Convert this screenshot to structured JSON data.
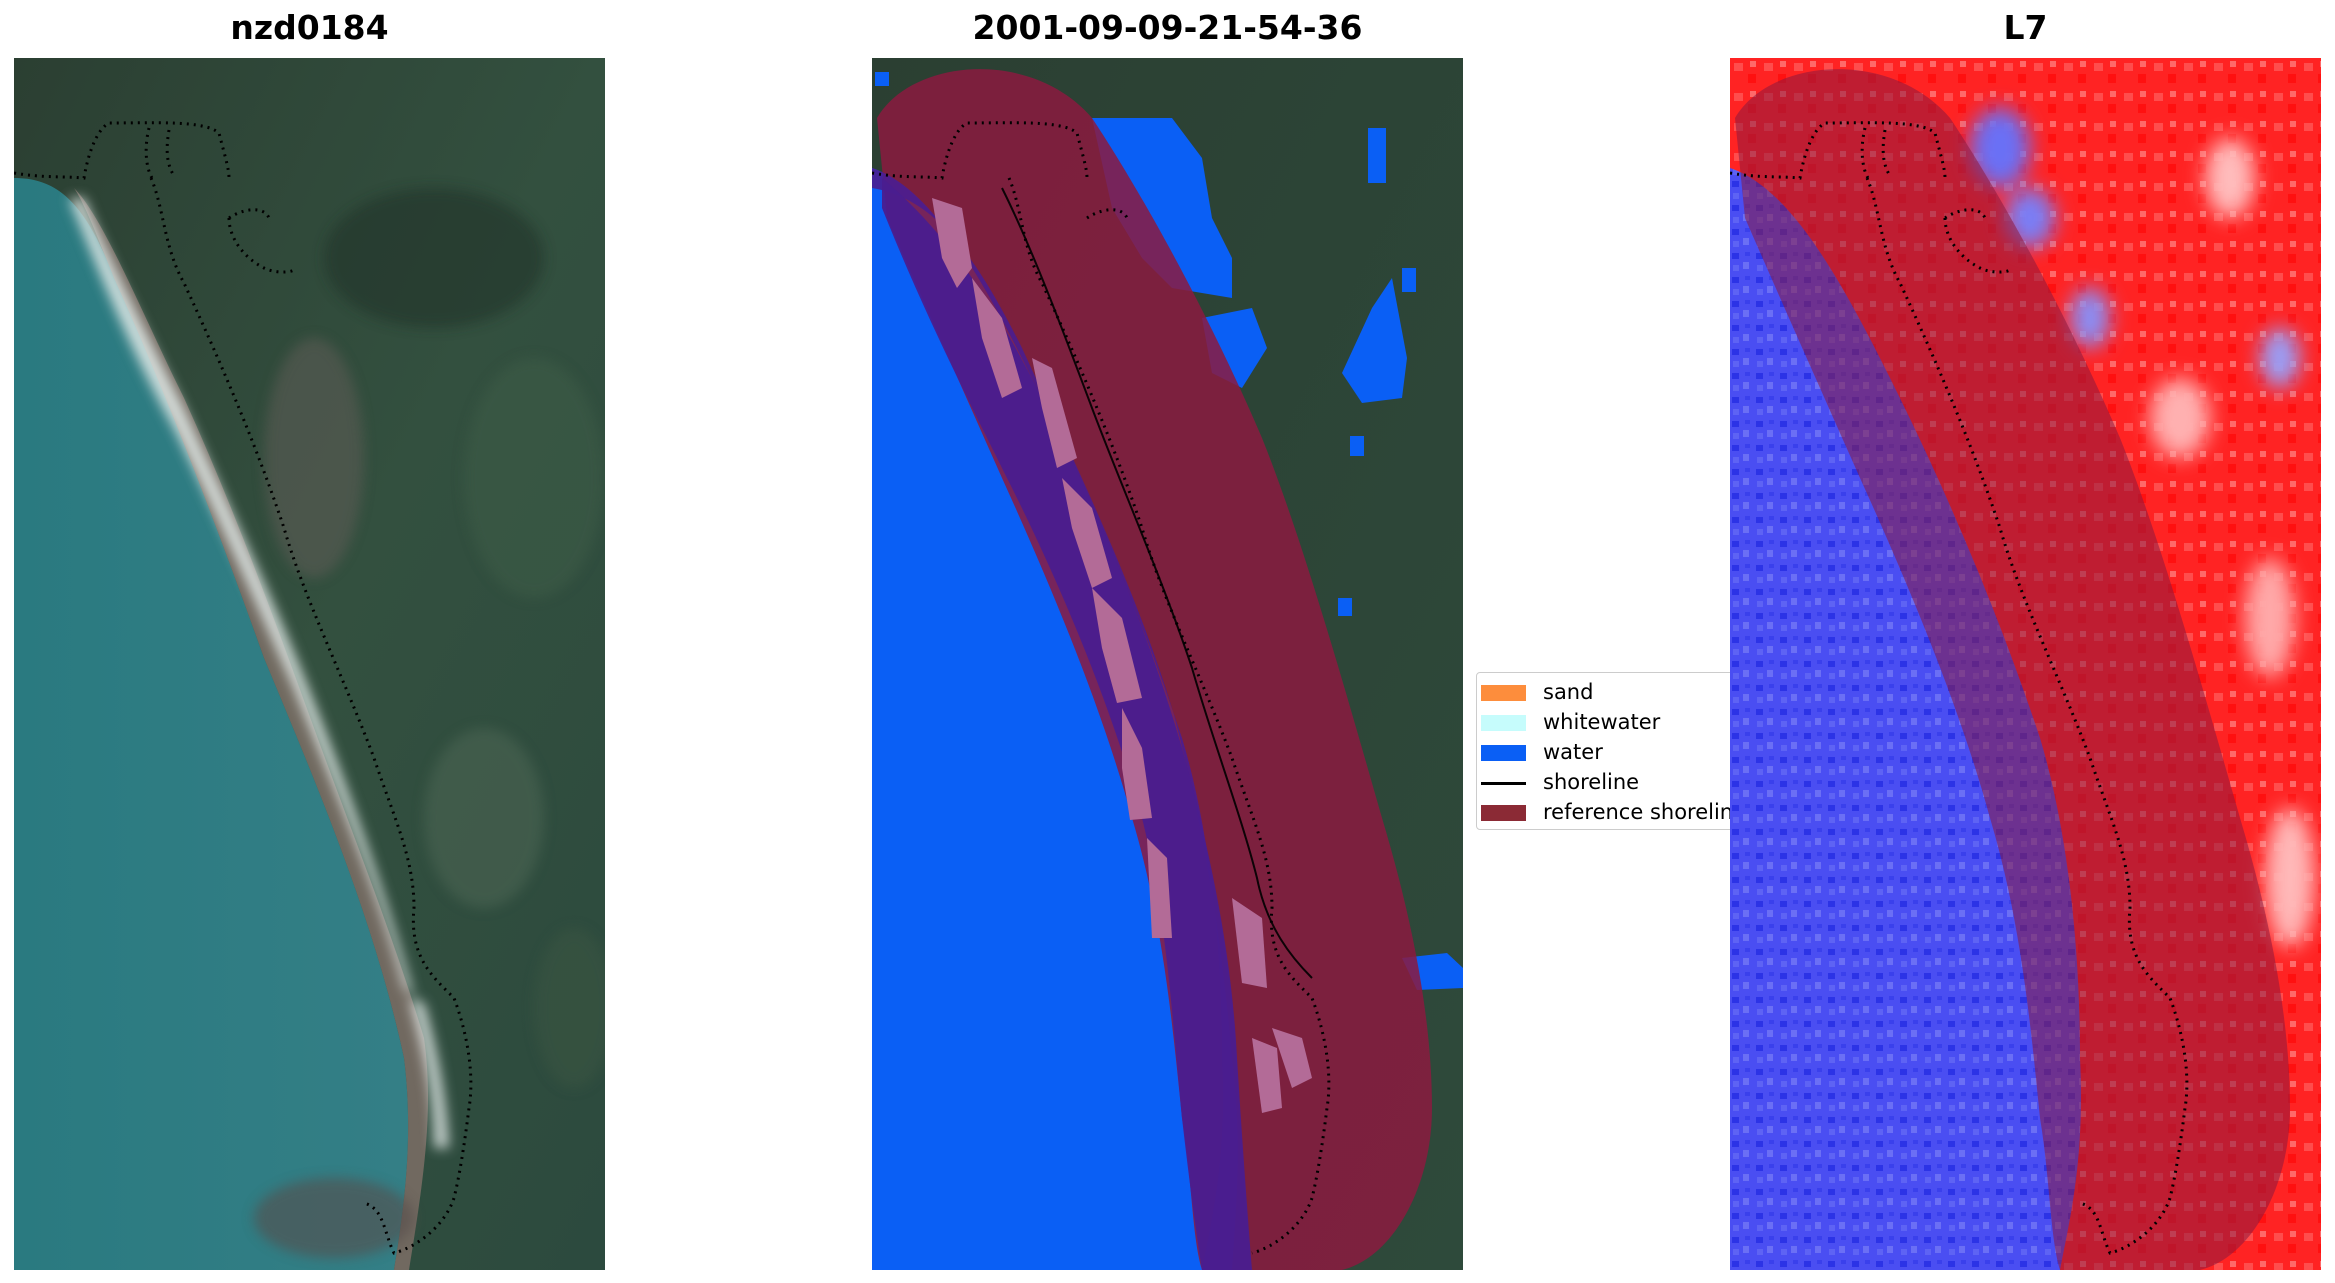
{
  "panels": [
    {
      "title": "nzd0184"
    },
    {
      "title": "2001-09-09-21-54-36"
    },
    {
      "title": "L7"
    }
  ],
  "legend": {
    "items": [
      {
        "label": "sand",
        "color": "#fd8d3c",
        "kind": "patch"
      },
      {
        "label": "whitewater",
        "color": "#c6fcfc",
        "kind": "patch"
      },
      {
        "label": "water",
        "color": "#0a5ff5",
        "kind": "patch"
      },
      {
        "label": "shoreline",
        "color": "#000000",
        "kind": "line"
      },
      {
        "label": "reference shorelin",
        "color": "#8b2a35",
        "kind": "patch"
      }
    ]
  },
  "colors": {
    "sea": "#2f7a86",
    "land": "#2d4a3c",
    "water_class": "#0a5ff5",
    "sand_class": "#b36b97",
    "reference_buffer": "#8b1a40",
    "index_positive": "#ff2020",
    "index_negative": "#3a3ff0"
  }
}
